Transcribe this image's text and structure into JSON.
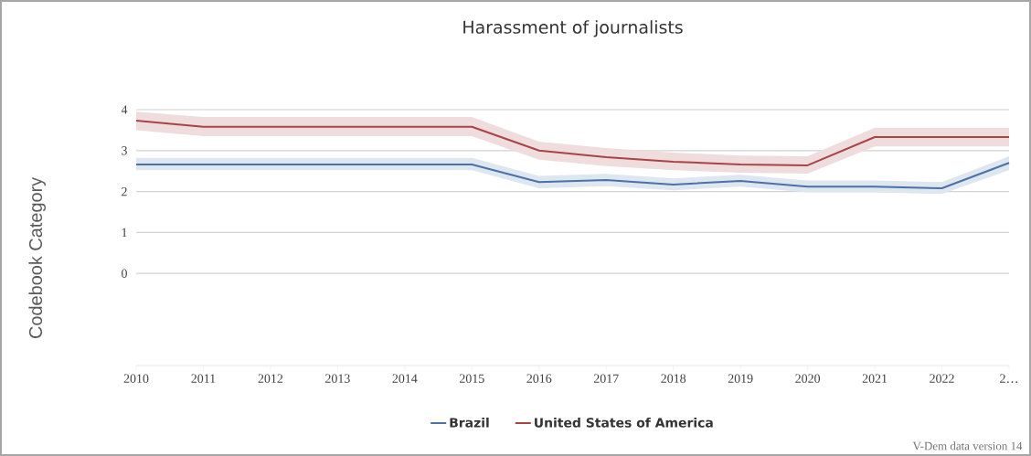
{
  "chart_data": {
    "type": "line",
    "title": "Harassment of journalists",
    "ylabel": "Codebook Category",
    "categories": [
      "2010",
      "2011",
      "2012",
      "2013",
      "2014",
      "2015",
      "2016",
      "2017",
      "2018",
      "2019",
      "2020",
      "2021",
      "2022",
      "2…"
    ],
    "series": [
      {
        "name": "Brazil",
        "color": "#4a72a8",
        "values": [
          2.66,
          2.66,
          2.66,
          2.66,
          2.66,
          2.66,
          2.23,
          2.28,
          2.17,
          2.26,
          2.12,
          2.12,
          2.08,
          2.7
        ],
        "lower": [
          2.52,
          2.52,
          2.52,
          2.52,
          2.52,
          2.52,
          2.08,
          2.13,
          2.03,
          2.12,
          1.98,
          1.98,
          1.94,
          2.52
        ],
        "upper": [
          2.82,
          2.82,
          2.82,
          2.82,
          2.82,
          2.82,
          2.38,
          2.43,
          2.32,
          2.41,
          2.27,
          2.27,
          2.23,
          2.86
        ]
      },
      {
        "name": "United States of America",
        "color": "#a84444",
        "values": [
          3.73,
          3.58,
          3.58,
          3.58,
          3.58,
          3.58,
          3.0,
          2.84,
          2.73,
          2.66,
          2.64,
          3.33,
          3.33,
          3.33
        ],
        "lower": [
          3.5,
          3.35,
          3.35,
          3.35,
          3.35,
          3.35,
          2.78,
          2.62,
          2.52,
          2.46,
          2.44,
          3.1,
          3.1,
          3.1
        ],
        "upper": [
          3.95,
          3.82,
          3.82,
          3.82,
          3.82,
          3.82,
          3.22,
          3.06,
          2.95,
          2.88,
          2.86,
          3.56,
          3.56,
          3.56
        ]
      }
    ],
    "ylim": [
      -2.25,
      4
    ],
    "yticks": [
      0,
      1,
      2,
      3,
      4
    ],
    "grid": "y",
    "legend": "bottom",
    "marker": "none",
    "line_style": "solid",
    "annotations": [
      "V-Dem data version 14"
    ]
  }
}
